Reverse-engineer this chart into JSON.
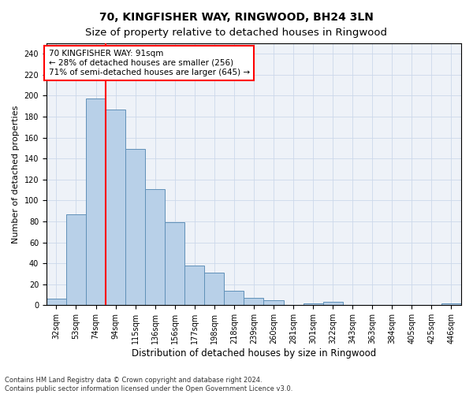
{
  "title": "70, KINGFISHER WAY, RINGWOOD, BH24 3LN",
  "subtitle": "Size of property relative to detached houses in Ringwood",
  "xlabel": "Distribution of detached houses by size in Ringwood",
  "ylabel": "Number of detached properties",
  "categories": [
    "32sqm",
    "53sqm",
    "74sqm",
    "94sqm",
    "115sqm",
    "136sqm",
    "156sqm",
    "177sqm",
    "198sqm",
    "218sqm",
    "239sqm",
    "260sqm",
    "281sqm",
    "301sqm",
    "322sqm",
    "343sqm",
    "363sqm",
    "384sqm",
    "405sqm",
    "425sqm",
    "446sqm"
  ],
  "values": [
    6,
    87,
    197,
    187,
    149,
    111,
    79,
    38,
    31,
    14,
    7,
    5,
    0,
    2,
    3,
    0,
    0,
    0,
    0,
    0,
    2
  ],
  "bar_color": "#b8d0e8",
  "bar_edge_color": "#6090b8",
  "redline_x": 2.5,
  "annotation_text": "70 KINGFISHER WAY: 91sqm\n← 28% of detached houses are smaller (256)\n71% of semi-detached houses are larger (645) →",
  "annotation_box_color": "white",
  "annotation_box_edge_color": "red",
  "redline_color": "red",
  "ylim": [
    0,
    250
  ],
  "yticks": [
    0,
    20,
    40,
    60,
    80,
    100,
    120,
    140,
    160,
    180,
    200,
    220,
    240
  ],
  "footnote": "Contains HM Land Registry data © Crown copyright and database right 2024.\nContains public sector information licensed under the Open Government Licence v3.0.",
  "title_fontsize": 10,
  "subtitle_fontsize": 9.5,
  "xlabel_fontsize": 8.5,
  "ylabel_fontsize": 8,
  "tick_fontsize": 7,
  "annotation_fontsize": 7.5
}
